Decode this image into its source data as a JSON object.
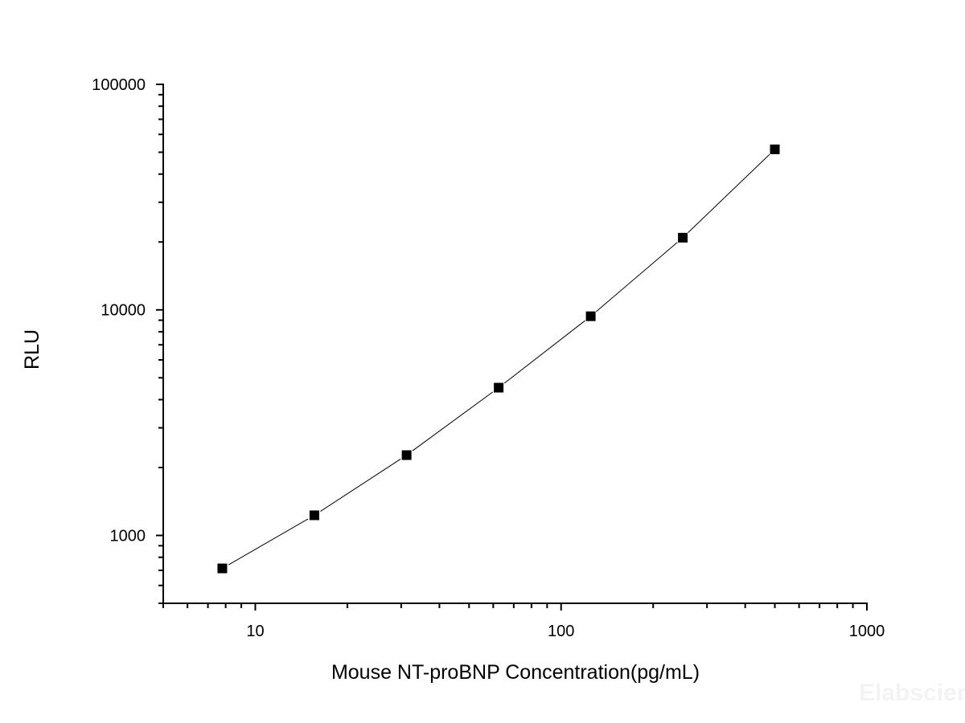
{
  "chart_data": {
    "type": "scatter",
    "title": "",
    "xlabel": "Mouse NT-proBNP Concentration(pg/mL)",
    "ylabel": "RLU",
    "x_scale": "log",
    "y_scale": "log",
    "xlim": [
      5,
      1000
    ],
    "ylim": [
      500,
      100000
    ],
    "x_ticks": [
      10,
      100,
      1000
    ],
    "x_tick_labels": [
      "10",
      "100",
      "1000"
    ],
    "y_ticks": [
      1000,
      10000,
      100000
    ],
    "y_tick_labels": [
      "1000",
      "10000",
      "100000"
    ],
    "grid": false,
    "legend": "none",
    "marker": "square",
    "marker_color": "#000000",
    "line_color": "#000000",
    "series": [
      {
        "x": [
          7.8,
          15.6,
          31.25,
          62.5,
          125,
          250,
          500
        ],
        "y": [
          714,
          1228,
          2270,
          4520,
          9370,
          20900,
          51500
        ]
      }
    ]
  },
  "watermark": "Elabscience"
}
